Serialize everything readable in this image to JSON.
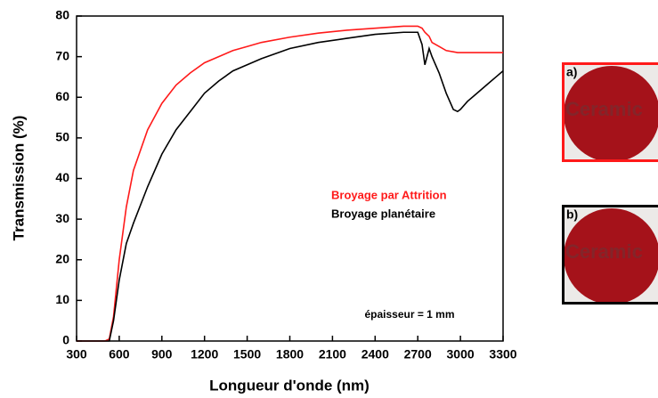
{
  "chart_data": {
    "type": "line",
    "xlabel": "Longueur d'onde (nm)",
    "ylabel": "Transmission (%)",
    "x": [
      300,
      400,
      500,
      530,
      560,
      600,
      650,
      700,
      800,
      900,
      1000,
      1100,
      1200,
      1300,
      1400,
      1500,
      1600,
      1800,
      2000,
      2200,
      2400,
      2600,
      2700,
      2730,
      2750,
      2780,
      2800,
      2850,
      2900,
      2950,
      2980,
      3000,
      3050,
      3100,
      3150,
      3200,
      3250,
      3300
    ],
    "series": [
      {
        "name": "Broyage par Attrition",
        "color": "#ff1a1a",
        "values": [
          0,
          0,
          0,
          0.5,
          6,
          20,
          33,
          42,
          52,
          58.5,
          63,
          66,
          68.5,
          70,
          71.5,
          72.5,
          73.5,
          74.8,
          75.8,
          76.5,
          77,
          77.5,
          77.5,
          77,
          76,
          75,
          73.5,
          72.5,
          71.5,
          71.2,
          71,
          71,
          71,
          71,
          71,
          71,
          71,
          71
        ]
      },
      {
        "name": "Broyage planétaire",
        "color": "#000000",
        "values": [
          0,
          0,
          0,
          0,
          5,
          15,
          24,
          29,
          38,
          46,
          52,
          56.5,
          61,
          64,
          66.5,
          68,
          69.5,
          72,
          73.5,
          74.5,
          75.5,
          76,
          76,
          73,
          68,
          72,
          70,
          66,
          61,
          57,
          56.5,
          57,
          59,
          60.5,
          62,
          63.5,
          65,
          66.5
        ]
      }
    ],
    "xlim": [
      300,
      3300
    ],
    "xticks": [
      300,
      600,
      900,
      1200,
      1500,
      1800,
      2100,
      2400,
      2700,
      3000,
      3300
    ],
    "ylim": [
      0,
      80
    ],
    "yticks": [
      0,
      10,
      20,
      30,
      40,
      50,
      60,
      70,
      80
    ],
    "annotation": "épaisseur = 1 mm"
  },
  "insets": [
    {
      "label": "a)",
      "watermark": "Ceramic",
      "border": "#ff1a1a"
    },
    {
      "label": "b)",
      "watermark": "Ceramic",
      "border": "#000000"
    }
  ]
}
